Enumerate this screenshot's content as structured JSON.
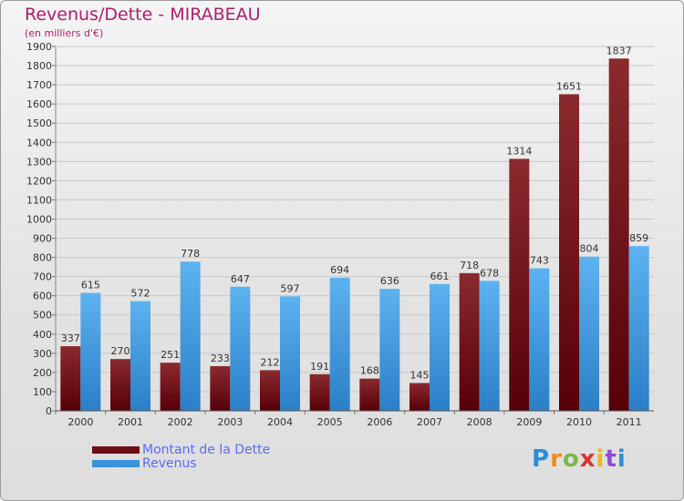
{
  "header": {
    "title": "Revenus/Dette - MIRABEAU",
    "subtitle": "(en milliers d'€)"
  },
  "legend": {
    "items": [
      {
        "label": "Montant de la Dette",
        "color": "#6b0f15"
      },
      {
        "label": "Revenus",
        "color": "#3a93db"
      }
    ]
  },
  "logo": {
    "letters": [
      "P",
      "r",
      "o",
      "x",
      "i",
      "t",
      "i"
    ],
    "colors": [
      "#2a8fd8",
      "#f08a1c",
      "#7ab84a",
      "#e03131",
      "#f0b51c",
      "#8a4fcf",
      "#2a8fd8"
    ]
  },
  "chart_data": {
    "type": "bar",
    "title": "Revenus/Dette - MIRABEAU",
    "subtitle": "(en milliers d'€)",
    "categories": [
      "2000",
      "2001",
      "2002",
      "2003",
      "2004",
      "2005",
      "2006",
      "2007",
      "2008",
      "2009",
      "2010",
      "2011"
    ],
    "series": [
      {
        "name": "Montant de la Dette",
        "color": "#6b0f15",
        "values": [
          337,
          270,
          251,
          233,
          212,
          191,
          168,
          145,
          718,
          1314,
          1651,
          1837
        ]
      },
      {
        "name": "Revenus",
        "color": "#3a93db",
        "values": [
          615,
          572,
          778,
          647,
          597,
          694,
          636,
          661,
          678,
          743,
          804,
          859
        ]
      }
    ],
    "ylim": [
      0,
      1900
    ],
    "yticks": [
      0,
      100,
      200,
      300,
      400,
      500,
      600,
      700,
      800,
      900,
      1000,
      1100,
      1200,
      1300,
      1400,
      1500,
      1600,
      1700,
      1800,
      1900
    ],
    "grid": true,
    "legend_position": "bottom-left"
  }
}
